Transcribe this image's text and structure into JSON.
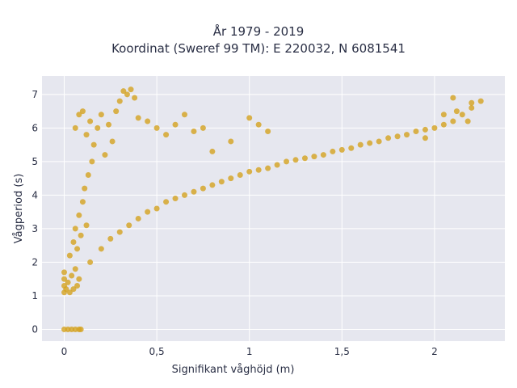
{
  "chart_data": {
    "type": "scatter",
    "title_lines": [
      "År 1979 - 2019",
      "Koordinat (Sweref 99 TM): E 220032, N 6081541"
    ],
    "xlabel": "Signifikant våghöjd (m)",
    "ylabel": "Vågperiod (s)",
    "xlim": [
      -0.12,
      2.38
    ],
    "ylim": [
      -0.35,
      7.55
    ],
    "x_ticks": [
      0,
      0.5,
      1,
      1.5,
      2
    ],
    "x_tick_labels": [
      "0",
      "0,5",
      "1",
      "1,5",
      "2"
    ],
    "y_ticks": [
      0,
      1,
      2,
      3,
      4,
      5,
      6,
      7
    ],
    "y_tick_labels": [
      "0",
      "1",
      "2",
      "3",
      "4",
      "5",
      "6",
      "7"
    ],
    "grid": true,
    "legend": false,
    "marker_color": "#d4a21f",
    "plot_bg": "#e6e7ef",
    "series": [
      {
        "values_description_omitted": false,
        "points": [
          [
            0.0,
            0.0
          ],
          [
            0.02,
            0.0
          ],
          [
            0.04,
            0.0
          ],
          [
            0.06,
            0.0
          ],
          [
            0.08,
            0.0
          ],
          [
            0.09,
            0.0
          ],
          [
            0.0,
            1.1
          ],
          [
            0.0,
            1.3
          ],
          [
            0.0,
            1.5
          ],
          [
            0.0,
            1.7
          ],
          [
            0.01,
            1.2
          ],
          [
            0.02,
            1.4
          ],
          [
            0.03,
            1.1
          ],
          [
            0.04,
            1.6
          ],
          [
            0.05,
            1.2
          ],
          [
            0.06,
            1.8
          ],
          [
            0.07,
            1.3
          ],
          [
            0.08,
            1.5
          ],
          [
            0.03,
            2.2
          ],
          [
            0.05,
            2.6
          ],
          [
            0.06,
            3.0
          ],
          [
            0.07,
            2.4
          ],
          [
            0.08,
            3.4
          ],
          [
            0.09,
            2.8
          ],
          [
            0.1,
            3.8
          ],
          [
            0.11,
            4.2
          ],
          [
            0.12,
            3.1
          ],
          [
            0.13,
            4.6
          ],
          [
            0.14,
            2.0
          ],
          [
            0.15,
            5.0
          ],
          [
            0.06,
            6.0
          ],
          [
            0.08,
            6.4
          ],
          [
            0.1,
            6.5
          ],
          [
            0.12,
            5.8
          ],
          [
            0.14,
            6.2
          ],
          [
            0.16,
            5.5
          ],
          [
            0.18,
            6.0
          ],
          [
            0.2,
            6.4
          ],
          [
            0.22,
            5.2
          ],
          [
            0.24,
            6.1
          ],
          [
            0.26,
            5.6
          ],
          [
            0.28,
            6.5
          ],
          [
            0.3,
            6.8
          ],
          [
            0.32,
            7.1
          ],
          [
            0.34,
            7.0
          ],
          [
            0.36,
            7.15
          ],
          [
            0.38,
            6.9
          ],
          [
            0.4,
            6.3
          ],
          [
            0.45,
            6.2
          ],
          [
            0.5,
            6.0
          ],
          [
            0.55,
            5.8
          ],
          [
            0.6,
            6.1
          ],
          [
            0.65,
            6.4
          ],
          [
            0.7,
            5.9
          ],
          [
            0.75,
            6.0
          ],
          [
            0.8,
            5.3
          ],
          [
            0.9,
            5.6
          ],
          [
            1.0,
            6.3
          ],
          [
            1.05,
            6.1
          ],
          [
            1.1,
            5.9
          ],
          [
            0.2,
            2.4
          ],
          [
            0.25,
            2.7
          ],
          [
            0.3,
            2.9
          ],
          [
            0.35,
            3.1
          ],
          [
            0.4,
            3.3
          ],
          [
            0.45,
            3.5
          ],
          [
            0.5,
            3.6
          ],
          [
            0.55,
            3.8
          ],
          [
            0.6,
            3.9
          ],
          [
            0.65,
            4.0
          ],
          [
            0.7,
            4.1
          ],
          [
            0.75,
            4.2
          ],
          [
            0.8,
            4.3
          ],
          [
            0.85,
            4.4
          ],
          [
            0.9,
            4.5
          ],
          [
            0.95,
            4.6
          ],
          [
            1.0,
            4.7
          ],
          [
            1.05,
            4.75
          ],
          [
            1.1,
            4.8
          ],
          [
            1.15,
            4.9
          ],
          [
            1.2,
            5.0
          ],
          [
            1.25,
            5.05
          ],
          [
            1.3,
            5.1
          ],
          [
            1.35,
            5.15
          ],
          [
            1.4,
            5.2
          ],
          [
            1.45,
            5.3
          ],
          [
            1.5,
            5.35
          ],
          [
            1.55,
            5.4
          ],
          [
            1.6,
            5.5
          ],
          [
            1.65,
            5.55
          ],
          [
            1.7,
            5.6
          ],
          [
            1.75,
            5.7
          ],
          [
            1.8,
            5.75
          ],
          [
            1.85,
            5.8
          ],
          [
            1.9,
            5.9
          ],
          [
            1.95,
            5.95
          ],
          [
            2.0,
            6.0
          ],
          [
            2.05,
            6.1
          ],
          [
            2.1,
            6.2
          ],
          [
            2.15,
            6.4
          ],
          [
            2.2,
            6.6
          ],
          [
            2.25,
            6.8
          ],
          [
            2.2,
            6.75
          ],
          [
            2.18,
            6.2
          ],
          [
            2.12,
            6.5
          ],
          [
            2.05,
            6.4
          ],
          [
            1.95,
            5.7
          ],
          [
            2.1,
            6.9
          ]
        ]
      }
    ]
  }
}
